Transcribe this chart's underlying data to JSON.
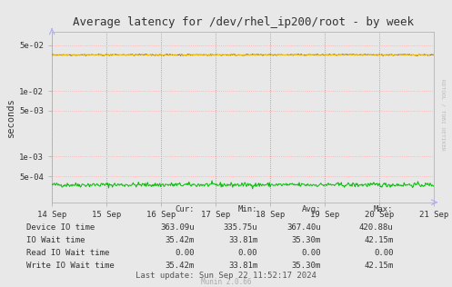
{
  "title": "Average latency for /dev/rhel_ip200/root - by week",
  "ylabel": "seconds",
  "background_color": "#e8e8e8",
  "plot_bg_color": "#e8e8e8",
  "grid_color_v": "#ff6666",
  "grid_color_h": "#ffaaaa",
  "x_labels": [
    "14 Sep",
    "15 Sep",
    "16 Sep",
    "17 Sep",
    "18 Sep",
    "19 Sep",
    "20 Sep",
    "21 Sep"
  ],
  "ylim_min": 0.0002,
  "ylim_max": 0.08,
  "yticks": [
    0.0005,
    0.001,
    0.005,
    0.01,
    0.05
  ],
  "ytick_labels": [
    "5e-04",
    "1e-03",
    "5e-03",
    "1e-02",
    "5e-02"
  ],
  "colors": {
    "device_io": "#00bb00",
    "io_wait": "#0000cc",
    "read_io_wait": "#ff6600",
    "write_io_wait": "#ffcc00"
  },
  "device_io_value": 0.00037,
  "device_io_noise": 1.5e-05,
  "io_wait_value": 0.0353,
  "io_wait_noise": 0.0003,
  "write_io_value": 0.0353,
  "write_io_noise": 0.0003,
  "read_io_value": 0.00011,
  "legend_items": [
    {
      "label": "Device IO time",
      "color": "#00bb00"
    },
    {
      "label": "IO Wait time",
      "color": "#0000cc"
    },
    {
      "label": "Read IO Wait time",
      "color": "#ff6600"
    },
    {
      "label": "Write IO Wait time",
      "color": "#ffcc00"
    }
  ],
  "legend_stats": [
    {
      "cur": "363.09u",
      "min": "335.75u",
      "avg": "367.40u",
      "max": "420.88u"
    },
    {
      "cur": "35.42m",
      "min": "33.81m",
      "avg": "35.30m",
      "max": "42.15m"
    },
    {
      "cur": "0.00",
      "min": "0.00",
      "avg": "0.00",
      "max": "0.00"
    },
    {
      "cur": "35.42m",
      "min": "33.81m",
      "avg": "35.30m",
      "max": "42.15m"
    }
  ],
  "last_update": "Last update: Sun Sep 22 11:52:17 2024",
  "munin_version": "Munin 2.0.66",
  "watermark": "RDTOOL / TOBI OETIKER",
  "n_points": 500
}
